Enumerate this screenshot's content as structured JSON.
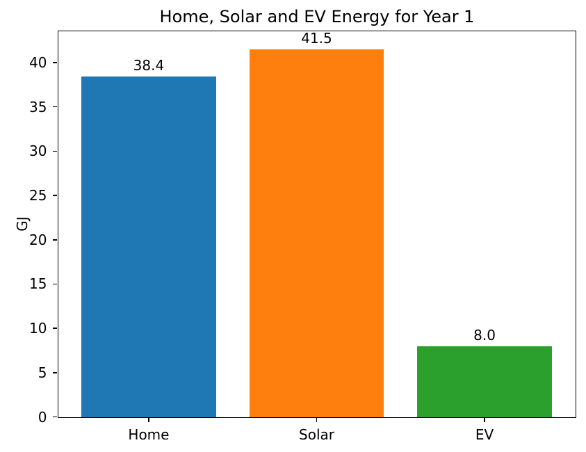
{
  "chart_data": {
    "type": "bar",
    "title": "Home, Solar and EV Energy for Year 1",
    "xlabel": "",
    "ylabel": "GJ",
    "categories": [
      "Home",
      "Solar",
      "EV"
    ],
    "values": [
      38.4,
      41.5,
      8.0
    ],
    "bar_labels": [
      "38.4",
      "41.5",
      "8.0"
    ],
    "bar_colors": [
      "#1f77b4",
      "#ff7f0e",
      "#2ca02c"
    ],
    "ylim": [
      0,
      43.575
    ],
    "yticks": [
      0,
      5,
      10,
      15,
      20,
      25,
      30,
      35,
      40
    ],
    "bar_width_fraction": 0.8,
    "grid": false,
    "legend_position": "none",
    "spine_color": "#000000",
    "text_color": "#000000",
    "background_color": "#ffffff"
  }
}
